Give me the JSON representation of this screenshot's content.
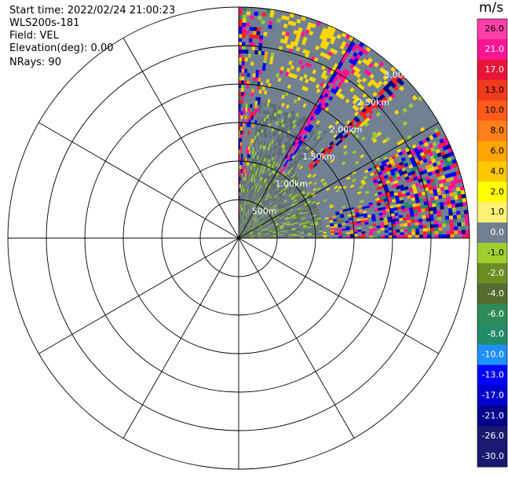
{
  "header": {
    "start_time": "Start time: 2022/02/24 21:00:23",
    "instrument": "WLS200s-181",
    "field": "Field: VEL",
    "elevation": "Elevation(deg): 0.00",
    "nrays": "NRays: 90"
  },
  "chart_data": {
    "type": "heatmap",
    "projection": "polar",
    "sector_azimuth_deg": [
      0,
      90
    ],
    "range_rings": [
      "500m",
      "1.00km",
      "1.50km",
      "2.00km",
      "2.50km",
      "3.00km"
    ],
    "range_max_km": 3.0,
    "spoke_step_deg": 30,
    "colorbar": {
      "unit": "m/s",
      "ticks": [
        "26.0",
        "21.0",
        "17.0",
        "13.0",
        "10.0",
        "8.0",
        "6.0",
        "4.0",
        "2.0",
        "1.0",
        "0.0",
        "-1.0",
        "-2.0",
        "-4.0",
        "-6.0",
        "-8.0",
        "-10.0",
        "-13.0",
        "-17.0",
        "-21.0",
        "-26.0",
        "-30.0"
      ],
      "colors": [
        "#ff3fa8",
        "#ff1493",
        "#e8153a",
        "#f23a1c",
        "#ff5a1a",
        "#ff7f1a",
        "#ffa500",
        "#ffc800",
        "#ffff00",
        "#fff176",
        "#708090",
        "#a0d030",
        "#6b8e23",
        "#556b2f",
        "#2e8b57",
        "#228b6a",
        "#1e90ff",
        "#0000ff",
        "#0000cd",
        "#00008b",
        "#191970",
        "#191970"
      ]
    }
  }
}
